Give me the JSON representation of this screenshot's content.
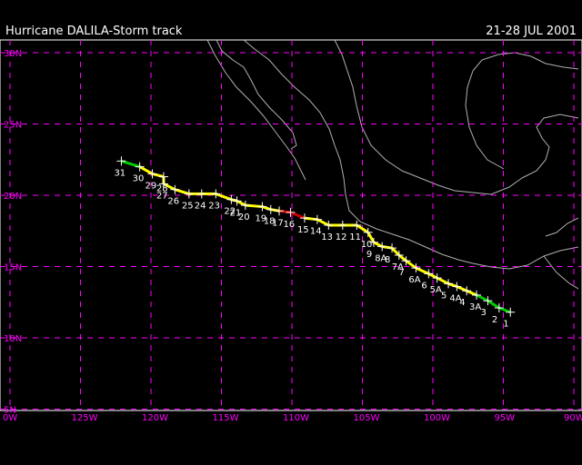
{
  "header": {
    "title": "Hurricane DALILA-Storm track",
    "dates": "21-28 JUL 2001"
  },
  "colors": {
    "background": "#000000",
    "grid": "#ff00ff",
    "coast": "#b0b0b0",
    "tropical_depression": "#00cc00",
    "tropical_storm": "#ffff00",
    "hurricane": "#cc0000",
    "text": "#ffffff"
  },
  "map": {
    "lat_range": [
      5,
      31
    ],
    "lon_range": [
      -130,
      -90
    ],
    "lat_labels": [
      "30N",
      "25N",
      "20N",
      "15N",
      "10N",
      "5N"
    ],
    "lon_labels": [
      "0W",
      "125W",
      "120W",
      "115W",
      "110W",
      "105W",
      "100W",
      "95W",
      "90W"
    ]
  },
  "track": [
    {
      "label": "1",
      "lat": 11.8,
      "lon": -94.5,
      "status": "depression"
    },
    {
      "label": "2",
      "lat": 12.1,
      "lon": -95.3,
      "status": "depression"
    },
    {
      "label": "3",
      "lat": 12.6,
      "lon": -96.1,
      "status": "depression"
    },
    {
      "label": "3A",
      "lat": 13.0,
      "lon": -96.9,
      "status": "storm"
    },
    {
      "label": "4",
      "lat": 13.3,
      "lon": -97.6,
      "status": "storm"
    },
    {
      "label": "4A",
      "lat": 13.6,
      "lon": -98.3,
      "status": "storm"
    },
    {
      "label": "5",
      "lat": 13.8,
      "lon": -98.9,
      "status": "storm"
    },
    {
      "label": "5A",
      "lat": 14.2,
      "lon": -99.7,
      "status": "storm"
    },
    {
      "label": "6",
      "lat": 14.5,
      "lon": -100.3,
      "status": "storm"
    },
    {
      "label": "6A",
      "lat": 14.9,
      "lon": -101.2,
      "status": "storm"
    },
    {
      "label": "7",
      "lat": 15.4,
      "lon": -101.9,
      "status": "storm"
    },
    {
      "label": "7A",
      "lat": 15.8,
      "lon": -102.4,
      "status": "storm"
    },
    {
      "label": "8",
      "lat": 16.3,
      "lon": -102.9,
      "status": "storm"
    },
    {
      "label": "8A",
      "lat": 16.4,
      "lon": -103.6,
      "status": "storm"
    },
    {
      "label": "9",
      "lat": 16.7,
      "lon": -104.2,
      "status": "storm"
    },
    {
      "label": "10",
      "lat": 17.4,
      "lon": -104.6,
      "status": "storm"
    },
    {
      "label": "11",
      "lat": 17.9,
      "lon": -105.4,
      "status": "storm"
    },
    {
      "label": "12",
      "lat": 17.9,
      "lon": -106.4,
      "status": "storm"
    },
    {
      "label": "13",
      "lat": 17.9,
      "lon": -107.4,
      "status": "storm"
    },
    {
      "label": "14",
      "lat": 18.3,
      "lon": -108.2,
      "status": "storm"
    },
    {
      "label": "15",
      "lat": 18.4,
      "lon": -109.1,
      "status": "hurricane"
    },
    {
      "label": "16",
      "lat": 18.8,
      "lon": -110.1,
      "status": "hurricane"
    },
    {
      "label": "17",
      "lat": 18.9,
      "lon": -110.9,
      "status": "storm"
    },
    {
      "label": "18",
      "lat": 19.0,
      "lon": -111.5,
      "status": "storm"
    },
    {
      "label": "19",
      "lat": 19.2,
      "lon": -112.1,
      "status": "storm"
    },
    {
      "label": "20",
      "lat": 19.3,
      "lon": -113.3,
      "status": "storm"
    },
    {
      "label": "21",
      "lat": 19.6,
      "lon": -113.9,
      "status": "storm"
    },
    {
      "label": "22",
      "lat": 19.7,
      "lon": -114.3,
      "status": "storm"
    },
    {
      "label": "23",
      "lat": 20.1,
      "lon": -115.4,
      "status": "storm"
    },
    {
      "label": "24",
      "lat": 20.1,
      "lon": -116.4,
      "status": "storm"
    },
    {
      "label": "25",
      "lat": 20.1,
      "lon": -117.3,
      "status": "storm"
    },
    {
      "label": "26",
      "lat": 20.4,
      "lon": -118.3,
      "status": "storm"
    },
    {
      "label": "27",
      "lat": 20.8,
      "lon": -119.1,
      "status": "storm"
    },
    {
      "label": "28",
      "lat": 21.3,
      "lon": -119.1,
      "status": "storm"
    },
    {
      "label": "29",
      "lat": 21.5,
      "lon": -119.9,
      "status": "storm"
    },
    {
      "label": "30",
      "lat": 22.0,
      "lon": -120.8,
      "status": "depression"
    },
    {
      "label": "31",
      "lat": 22.4,
      "lon": -122.1,
      "status": "depression"
    }
  ]
}
